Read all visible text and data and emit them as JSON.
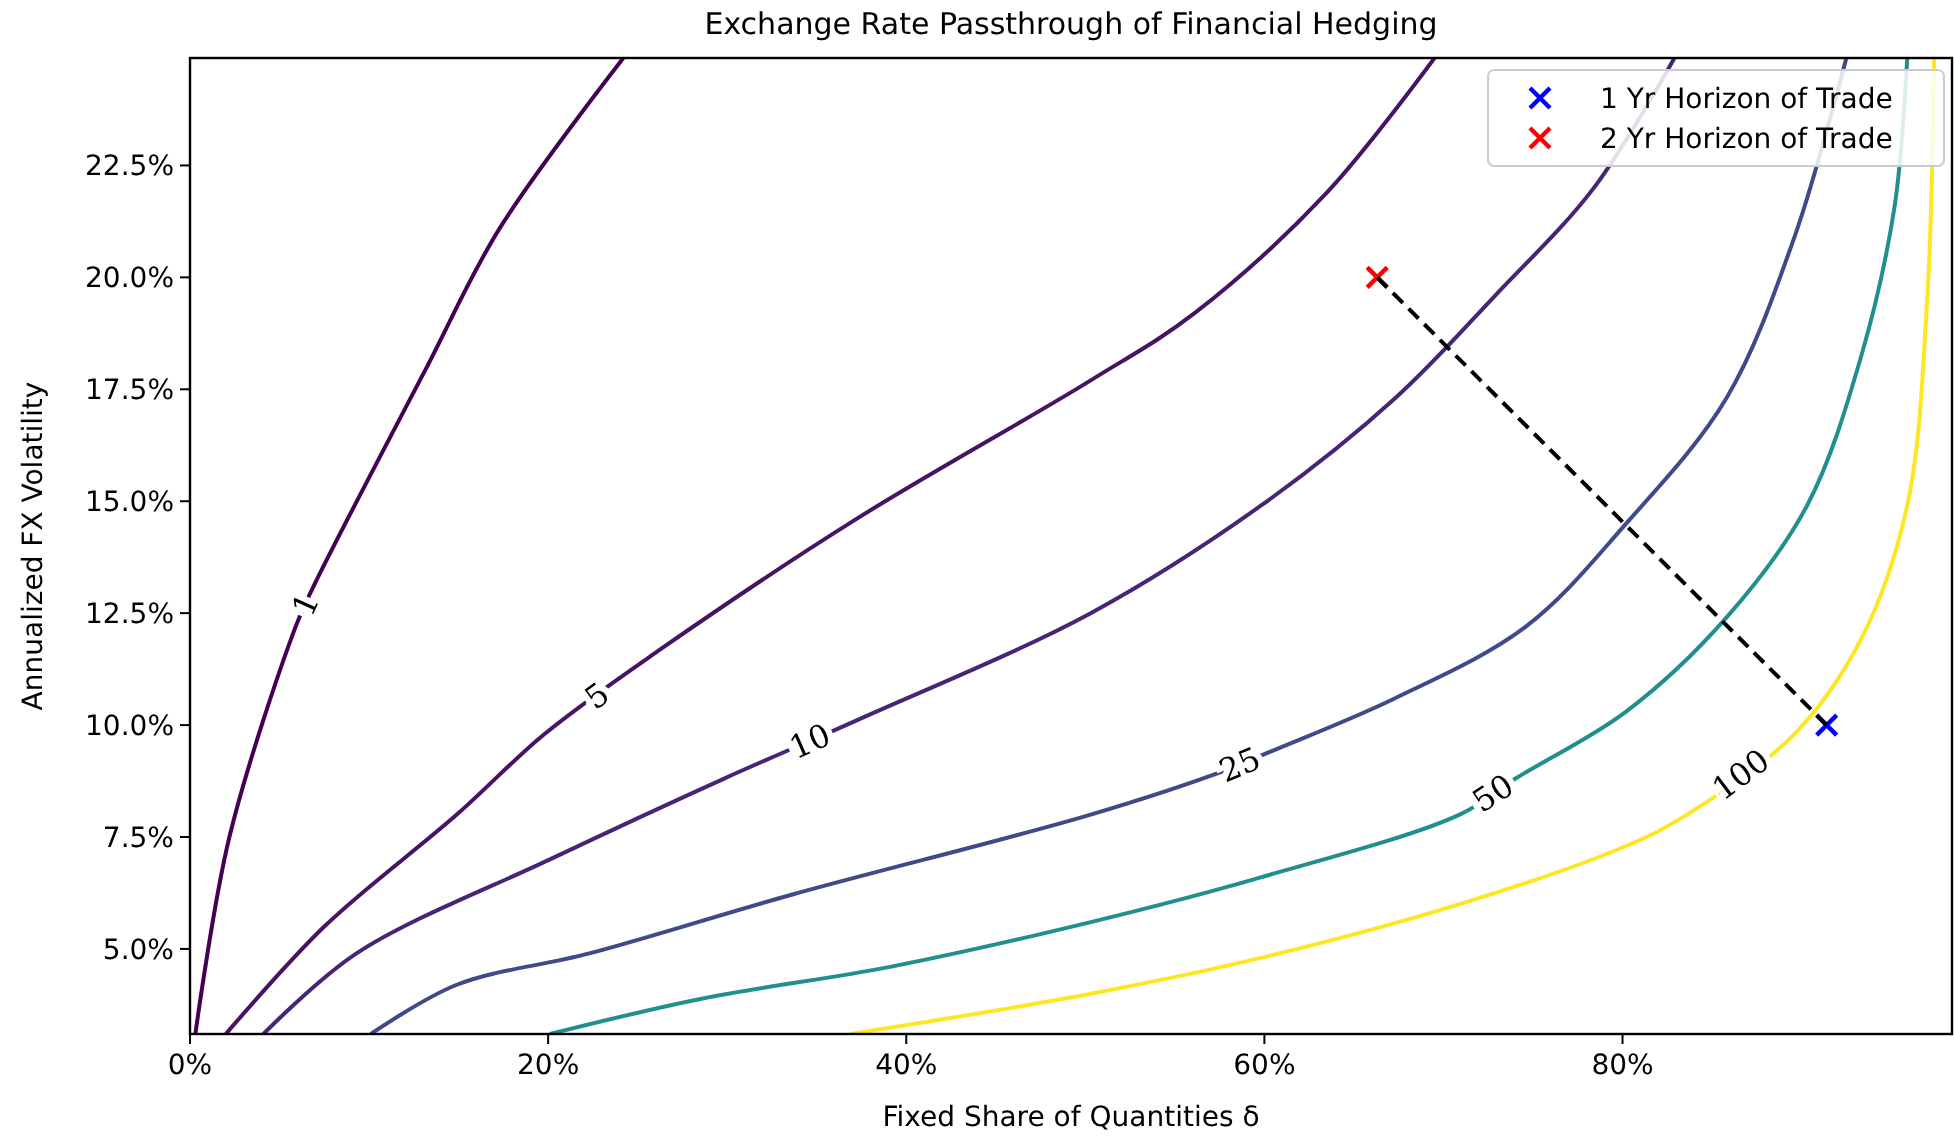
{
  "chart_data": {
    "type": "line",
    "title": "Exchange Rate Passthrough of Financial Hedging",
    "xlabel": "Fixed Share of Quantities δ",
    "ylabel": "Annualized FX Volatility",
    "xlim": [
      0,
      98.4
    ],
    "ylim": [
      3.1,
      24.9
    ],
    "xticks": [
      {
        "value": 0,
        "label": "0%"
      },
      {
        "value": 20,
        "label": "20%"
      },
      {
        "value": 40,
        "label": "40%"
      },
      {
        "value": 60,
        "label": "60%"
      },
      {
        "value": 80,
        "label": "80%"
      }
    ],
    "yticks": [
      {
        "value": 5,
        "label": "5.0%"
      },
      {
        "value": 7.5,
        "label": "7.5%"
      },
      {
        "value": 10,
        "label": "10.0%"
      },
      {
        "value": 12.5,
        "label": "12.5%"
      },
      {
        "value": 15,
        "label": "15.0%"
      },
      {
        "value": 17.5,
        "label": "17.5%"
      },
      {
        "value": 20,
        "label": "20.0%"
      },
      {
        "value": 22.5,
        "label": "22.5%"
      }
    ],
    "grid": false,
    "legend": "top right",
    "marker": "none",
    "line_style": "solid",
    "series": [
      {
        "name": "1",
        "color": "#440154",
        "x": [
          0.3,
          2.2,
          5.9,
          6.9,
          13.1,
          17.3,
          24.2
        ],
        "values": [
          3.1,
          7.5,
          12.2,
          13.1,
          17.9,
          21.1,
          24.9
        ]
      },
      {
        "name": "5",
        "color": "#471365",
        "x": [
          2.0,
          7.5,
          14.9,
          19.8,
          26.3,
          37.2,
          50.3,
          56.1,
          63.5,
          69.5
        ],
        "values": [
          3.1,
          5.5,
          8.0,
          9.8,
          11.7,
          14.6,
          17.7,
          19.2,
          21.9,
          24.9
        ]
      },
      {
        "name": "10",
        "color": "#482475",
        "x": [
          4.1,
          9.3,
          20.1,
          29.8,
          37.2,
          50.3,
          59.8,
          67.3,
          72.9,
          78.4,
          82.9
        ],
        "values": [
          3.1,
          4.9,
          7.0,
          8.8,
          10.1,
          12.5,
          14.9,
          17.3,
          19.6,
          22.0,
          24.9
        ]
      },
      {
        "name": "25",
        "color": "#3e4a89",
        "x": [
          10.1,
          14.9,
          22.3,
          33.5,
          50.3,
          57.9,
          60.3,
          67.3,
          74.6,
          80.2,
          85.8,
          89.6,
          92.5
        ],
        "values": [
          3.1,
          4.2,
          4.9,
          6.2,
          8.0,
          9.0,
          9.4,
          10.6,
          12.2,
          14.5,
          17.3,
          20.9,
          24.9
        ]
      },
      {
        "name": "50",
        "color": "#21908d",
        "x": [
          20.1,
          28.7,
          39.1,
          50.3,
          59.8,
          70.9,
          74.0,
          80.2,
          85.8,
          90.3,
          93.3,
          95.2,
          95.9
        ],
        "values": [
          3.1,
          3.9,
          4.6,
          5.6,
          6.6,
          8.0,
          8.8,
          10.3,
          12.4,
          14.9,
          18.2,
          21.6,
          24.9
        ]
      },
      {
        "name": "100",
        "color": "#fde725",
        "x": [
          36.9,
          50.3,
          59.8,
          70.9,
          80.2,
          83.6,
          89.6,
          93.3,
          95.9,
          97.0,
          97.4
        ],
        "values": [
          3.1,
          4.0,
          4.8,
          6.0,
          7.3,
          8.0,
          9.8,
          11.9,
          14.9,
          19.4,
          24.9
        ]
      },
      {
        "type": "line",
        "color": "#000000",
        "line_style": "dashed",
        "x": [
          66.3,
          91.4
        ],
        "values": [
          20.0,
          10.0
        ]
      },
      {
        "type": "scatter",
        "name": "1 Yr Horizon of Trade",
        "color": "#0000ff",
        "marker": "cross",
        "x": [
          91.4
        ],
        "values": [
          10.0
        ]
      },
      {
        "type": "scatter",
        "name": "2 Yr Horizon of Trade",
        "color": "#ff0000",
        "marker": "cross",
        "x": [
          66.3
        ],
        "values": [
          20.0
        ]
      }
    ]
  }
}
